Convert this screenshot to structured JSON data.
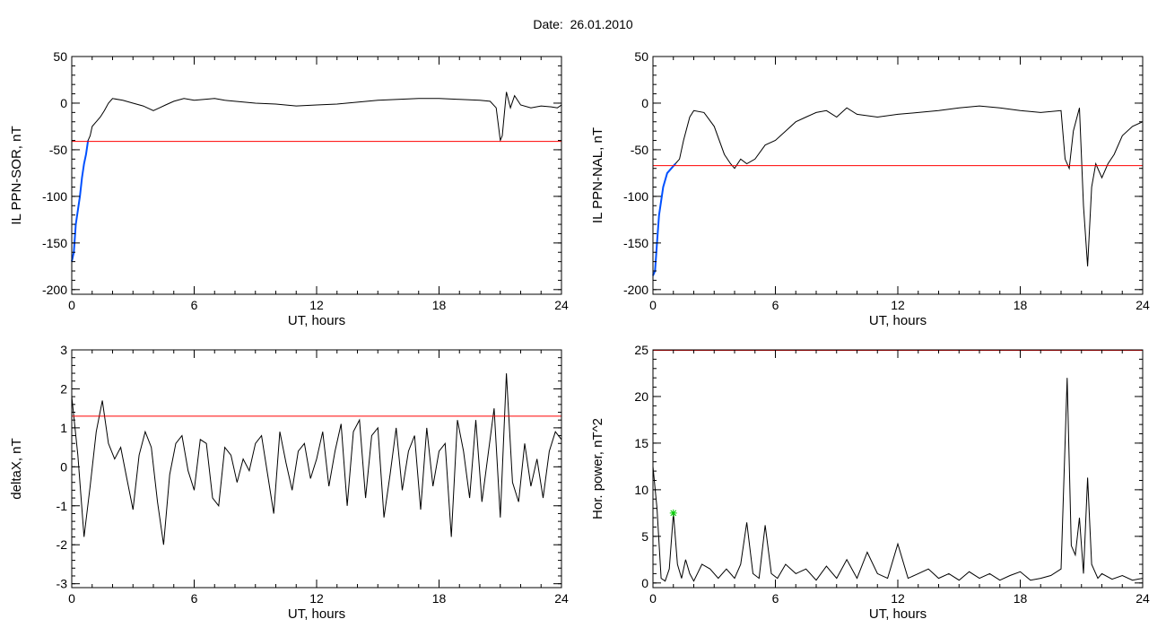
{
  "header": {
    "date_label": "Date:",
    "date_value": "26.01.2010"
  },
  "colors": {
    "trace": "#000000",
    "threshold": "#ff0000",
    "highlight": "#0050ff",
    "marker_green": "#00cc00",
    "marker_red": "#ff0000"
  },
  "chart_data": [
    {
      "type": "line",
      "xlabel": "UT, hours",
      "ylabel": "IL PPN-SOR, nT",
      "xlim": [
        0,
        24
      ],
      "ylim": [
        -205,
        50
      ],
      "xticks": [
        0,
        6,
        12,
        18,
        24
      ],
      "yticks": [
        -200,
        -150,
        -100,
        -50,
        0,
        50
      ],
      "threshold": -41,
      "series": [
        {
          "x": [
            0,
            0.1,
            0.2,
            0.3,
            0.4,
            0.5,
            0.6,
            0.7,
            0.8,
            0.9,
            1.0,
            1.2,
            1.4,
            1.6,
            1.8,
            2.0,
            2.5,
            3.0,
            3.5,
            4.0,
            4.3,
            4.6,
            5.0,
            5.5,
            6.0,
            6.5,
            7.0,
            7.5,
            8.0,
            9.0,
            10.0,
            11.0,
            12.0,
            13.0,
            14.0,
            15.0,
            16.0,
            17.0,
            18.0,
            19.0,
            20.0,
            20.5,
            20.8,
            21.0,
            21.1,
            21.3,
            21.5,
            21.7,
            22.0,
            22.5,
            23.0,
            23.5,
            23.8,
            24.0
          ],
          "y": [
            -170,
            -160,
            -130,
            -115,
            -100,
            -80,
            -65,
            -55,
            -40,
            -35,
            -25,
            -20,
            -15,
            -8,
            0,
            5,
            3,
            0,
            -3,
            -8,
            -5,
            -2,
            2,
            5,
            3,
            4,
            5,
            3,
            2,
            0,
            -1,
            -3,
            -2,
            -1,
            1,
            3,
            4,
            5,
            5,
            4,
            3,
            2,
            -5,
            -40,
            -35,
            12,
            -5,
            8,
            -2,
            -5,
            -3,
            -4,
            -5,
            -2
          ]
        }
      ],
      "highlight_x": [
        0,
        0.8
      ]
    },
    {
      "type": "line",
      "xlabel": "UT, hours",
      "ylabel": "IL PPN-NAL, nT",
      "xlim": [
        0,
        24
      ],
      "ylim": [
        -205,
        50
      ],
      "xticks": [
        0,
        6,
        12,
        18,
        24
      ],
      "yticks": [
        -200,
        -150,
        -100,
        -50,
        0,
        50
      ],
      "threshold": -67,
      "series": [
        {
          "x": [
            0,
            0.1,
            0.2,
            0.3,
            0.5,
            0.7,
            0.9,
            1.1,
            1.3,
            1.5,
            1.8,
            2.0,
            2.5,
            3.0,
            3.5,
            3.8,
            4.0,
            4.3,
            4.6,
            5.0,
            5.5,
            6.0,
            6.5,
            7.0,
            7.5,
            8.0,
            8.5,
            9.0,
            9.5,
            10.0,
            11.0,
            12.0,
            13.0,
            14.0,
            15.0,
            16.0,
            17.0,
            18.0,
            19.0,
            20.0,
            20.2,
            20.4,
            20.6,
            20.9,
            21.1,
            21.3,
            21.5,
            21.7,
            22.0,
            22.3,
            22.6,
            23.0,
            23.5,
            24.0
          ],
          "y": [
            -185,
            -180,
            -150,
            -120,
            -90,
            -75,
            -70,
            -65,
            -60,
            -40,
            -15,
            -8,
            -10,
            -25,
            -55,
            -65,
            -70,
            -60,
            -65,
            -60,
            -45,
            -40,
            -30,
            -20,
            -15,
            -10,
            -8,
            -15,
            -5,
            -12,
            -15,
            -12,
            -10,
            -8,
            -5,
            -3,
            -5,
            -8,
            -10,
            -8,
            -60,
            -70,
            -30,
            -5,
            -110,
            -175,
            -90,
            -65,
            -80,
            -65,
            -55,
            -35,
            -25,
            -20
          ]
        }
      ],
      "highlight_x": [
        0,
        1.2
      ]
    },
    {
      "type": "line",
      "xlabel": "UT, hours",
      "ylabel": "deltaX, nT",
      "xlim": [
        0,
        24
      ],
      "ylim": [
        -3.1,
        3
      ],
      "xticks": [
        0,
        6,
        12,
        18,
        24
      ],
      "yticks": [
        -3,
        -2,
        -1,
        0,
        1,
        2,
        3
      ],
      "threshold": 1.3,
      "series": [
        {
          "x": [
            0,
            0.3,
            0.6,
            0.9,
            1.2,
            1.5,
            1.8,
            2.1,
            2.4,
            2.7,
            3.0,
            3.3,
            3.6,
            3.9,
            4.2,
            4.5,
            4.8,
            5.1,
            5.4,
            5.7,
            6.0,
            6.3,
            6.6,
            6.9,
            7.2,
            7.5,
            7.8,
            8.1,
            8.4,
            8.7,
            9.0,
            9.3,
            9.6,
            9.9,
            10.2,
            10.5,
            10.8,
            11.1,
            11.4,
            11.7,
            12.0,
            12.3,
            12.6,
            12.9,
            13.2,
            13.5,
            13.8,
            14.1,
            14.4,
            14.7,
            15.0,
            15.3,
            15.6,
            15.9,
            16.2,
            16.5,
            16.8,
            17.1,
            17.4,
            17.7,
            18.0,
            18.3,
            18.6,
            18.9,
            19.2,
            19.5,
            19.8,
            20.1,
            20.4,
            20.7,
            21.0,
            21.3,
            21.6,
            21.9,
            22.2,
            22.5,
            22.8,
            23.1,
            23.4,
            23.7,
            24.0
          ],
          "y": [
            1.8,
            0.3,
            -1.8,
            -0.5,
            0.9,
            1.7,
            0.6,
            0.2,
            0.5,
            -0.3,
            -1.1,
            0.3,
            0.9,
            0.5,
            -0.9,
            -2.0,
            -0.2,
            0.6,
            0.8,
            -0.1,
            -0.6,
            0.7,
            0.6,
            -0.8,
            -1.0,
            0.5,
            0.3,
            -0.4,
            0.2,
            -0.1,
            0.6,
            0.8,
            -0.2,
            -1.2,
            0.9,
            0.1,
            -0.6,
            0.4,
            0.6,
            -0.3,
            0.2,
            0.9,
            -0.5,
            0.4,
            1.1,
            -1.0,
            0.9,
            1.2,
            -0.8,
            0.8,
            1.0,
            -1.3,
            -0.2,
            1.0,
            -0.6,
            0.4,
            0.8,
            -1.1,
            1.0,
            -0.5,
            0.4,
            0.6,
            -1.8,
            1.2,
            0.4,
            -0.8,
            1.2,
            -0.9,
            0.3,
            1.5,
            -1.3,
            2.4,
            -0.4,
            -0.9,
            0.6,
            -0.5,
            0.2,
            -0.8,
            0.4,
            0.9,
            0.7
          ]
        }
      ]
    },
    {
      "type": "line",
      "xlabel": "UT, hours",
      "ylabel": "Hor. power, nT^2",
      "xlim": [
        0,
        24
      ],
      "ylim": [
        -0.5,
        25
      ],
      "xticks": [
        0,
        6,
        12,
        18,
        24
      ],
      "yticks": [
        0,
        5,
        10,
        15,
        20,
        25
      ],
      "threshold": 25,
      "series": [
        {
          "x": [
            0,
            0.2,
            0.4,
            0.6,
            0.8,
            1.0,
            1.2,
            1.4,
            1.6,
            1.8,
            2.0,
            2.4,
            2.8,
            3.2,
            3.6,
            4.0,
            4.3,
            4.6,
            4.9,
            5.2,
            5.5,
            5.8,
            6.1,
            6.5,
            7.0,
            7.5,
            8.0,
            8.5,
            9.0,
            9.5,
            10.0,
            10.5,
            11.0,
            11.5,
            12.0,
            12.5,
            13.0,
            13.5,
            14.0,
            14.5,
            15.0,
            15.5,
            16.0,
            16.5,
            17.0,
            17.5,
            18.0,
            18.5,
            19.0,
            19.5,
            20.0,
            20.3,
            20.5,
            20.7,
            20.9,
            21.1,
            21.3,
            21.5,
            21.8,
            22.0,
            22.5,
            23.0,
            23.5,
            24.0
          ],
          "y": [
            12.5,
            8,
            0.5,
            0.2,
            1.5,
            7.5,
            2,
            0.5,
            2.5,
            1,
            0.2,
            2,
            1.5,
            0.5,
            1.5,
            0.5,
            2,
            6.5,
            1,
            0.5,
            6.2,
            1,
            0.5,
            2,
            1,
            1.5,
            0.3,
            1.8,
            0.5,
            2.5,
            0.5,
            3.3,
            1,
            0.5,
            4.2,
            0.5,
            1,
            1.5,
            0.5,
            1,
            0.3,
            1.2,
            0.5,
            1,
            0.3,
            0.8,
            1.2,
            0.3,
            0.5,
            0.8,
            1.5,
            22,
            4,
            3,
            7,
            1,
            11.3,
            2,
            0.5,
            1,
            0.4,
            0.8,
            0.3,
            0.5
          ]
        }
      ],
      "markers_green": [
        [
          1.0,
          7.5
        ]
      ]
    }
  ]
}
